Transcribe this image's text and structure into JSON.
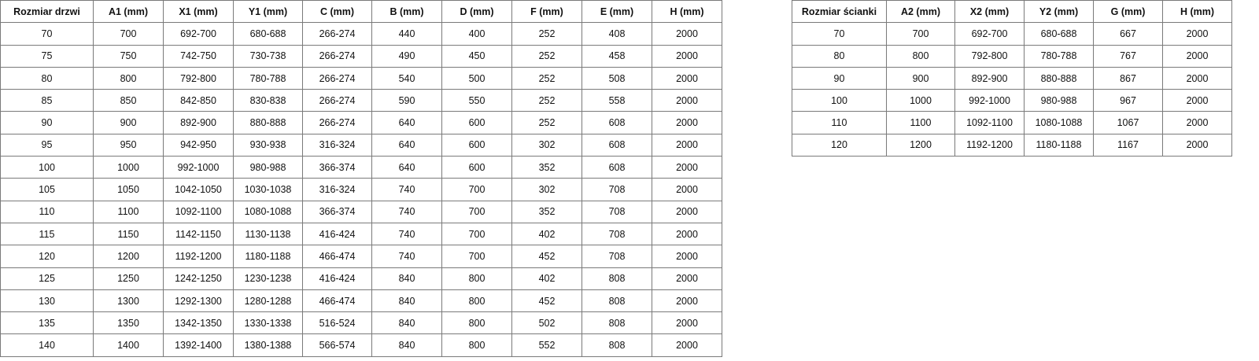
{
  "door_table": {
    "headers": [
      "Rozmiar drzwi",
      "A1 (mm)",
      "X1 (mm)",
      "Y1 (mm)",
      "C (mm)",
      "B (mm)",
      "D (mm)",
      "F (mm)",
      "E (mm)",
      "H (mm)"
    ],
    "rows": [
      [
        "70",
        "700",
        "692-700",
        "680-688",
        "266-274",
        "440",
        "400",
        "252",
        "408",
        "2000"
      ],
      [
        "75",
        "750",
        "742-750",
        "730-738",
        "266-274",
        "490",
        "450",
        "252",
        "458",
        "2000"
      ],
      [
        "80",
        "800",
        "792-800",
        "780-788",
        "266-274",
        "540",
        "500",
        "252",
        "508",
        "2000"
      ],
      [
        "85",
        "850",
        "842-850",
        "830-838",
        "266-274",
        "590",
        "550",
        "252",
        "558",
        "2000"
      ],
      [
        "90",
        "900",
        "892-900",
        "880-888",
        "266-274",
        "640",
        "600",
        "252",
        "608",
        "2000"
      ],
      [
        "95",
        "950",
        "942-950",
        "930-938",
        "316-324",
        "640",
        "600",
        "302",
        "608",
        "2000"
      ],
      [
        "100",
        "1000",
        "992-1000",
        "980-988",
        "366-374",
        "640",
        "600",
        "352",
        "608",
        "2000"
      ],
      [
        "105",
        "1050",
        "1042-1050",
        "1030-1038",
        "316-324",
        "740",
        "700",
        "302",
        "708",
        "2000"
      ],
      [
        "110",
        "1100",
        "1092-1100",
        "1080-1088",
        "366-374",
        "740",
        "700",
        "352",
        "708",
        "2000"
      ],
      [
        "115",
        "1150",
        "1142-1150",
        "1130-1138",
        "416-424",
        "740",
        "700",
        "402",
        "708",
        "2000"
      ],
      [
        "120",
        "1200",
        "1192-1200",
        "1180-1188",
        "466-474",
        "740",
        "700",
        "452",
        "708",
        "2000"
      ],
      [
        "125",
        "1250",
        "1242-1250",
        "1230-1238",
        "416-424",
        "840",
        "800",
        "402",
        "808",
        "2000"
      ],
      [
        "130",
        "1300",
        "1292-1300",
        "1280-1288",
        "466-474",
        "840",
        "800",
        "452",
        "808",
        "2000"
      ],
      [
        "135",
        "1350",
        "1342-1350",
        "1330-1338",
        "516-524",
        "840",
        "800",
        "502",
        "808",
        "2000"
      ],
      [
        "140",
        "1400",
        "1392-1400",
        "1380-1388",
        "566-574",
        "840",
        "800",
        "552",
        "808",
        "2000"
      ]
    ]
  },
  "wall_table": {
    "headers": [
      "Rozmiar ścianki",
      "A2 (mm)",
      "X2 (mm)",
      "Y2 (mm)",
      "G (mm)",
      "H (mm)"
    ],
    "rows": [
      [
        "70",
        "700",
        "692-700",
        "680-688",
        "667",
        "2000"
      ],
      [
        "80",
        "800",
        "792-800",
        "780-788",
        "767",
        "2000"
      ],
      [
        "90",
        "900",
        "892-900",
        "880-888",
        "867",
        "2000"
      ],
      [
        "100",
        "1000",
        "992-1000",
        "980-988",
        "967",
        "2000"
      ],
      [
        "110",
        "1100",
        "1092-1100",
        "1080-1088",
        "1067",
        "2000"
      ],
      [
        "120",
        "1200",
        "1192-1200",
        "1180-1188",
        "1167",
        "2000"
      ]
    ]
  }
}
